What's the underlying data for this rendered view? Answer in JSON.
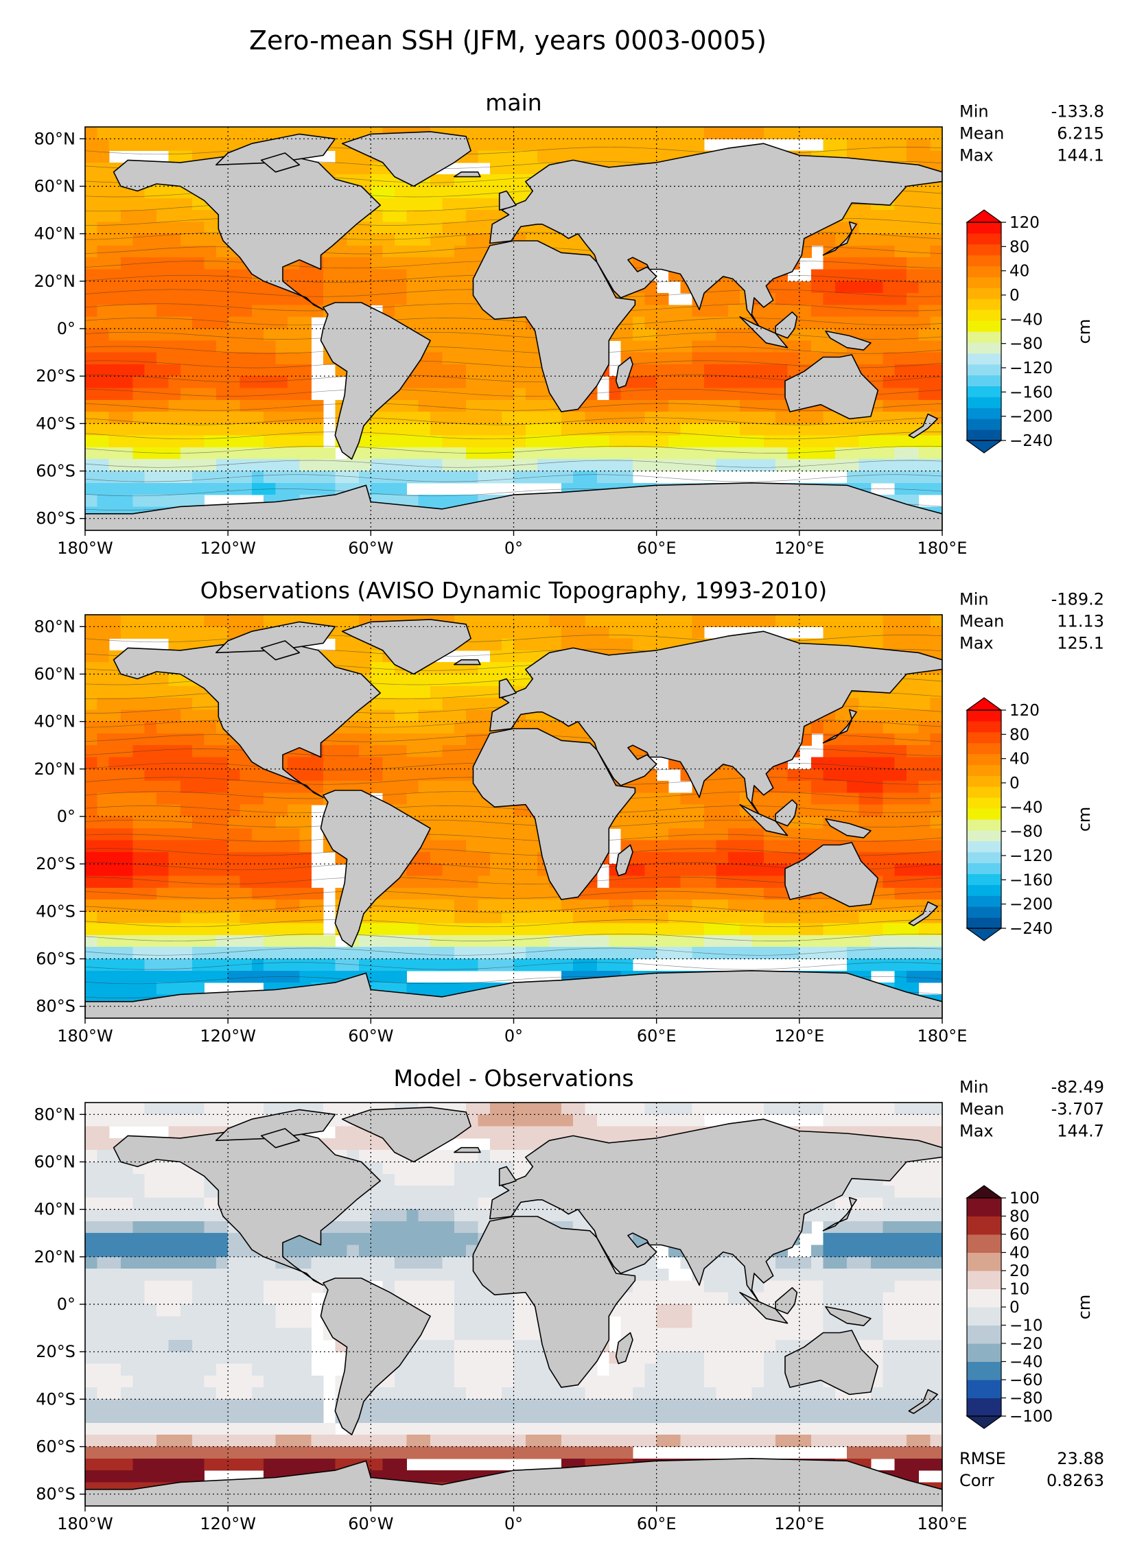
{
  "figure": {
    "suptitle": "Zero-mean SSH (JFM, years 0003-0005)"
  },
  "colors": {
    "land": "#c8c8c8",
    "ssh_scale": [
      "#00569e",
      "#0073bd",
      "#0090d6",
      "#00aee6",
      "#1cc3ef",
      "#5fd0f2",
      "#92dcf2",
      "#b9e8f2",
      "#dcf2c6",
      "#e4f589",
      "#f2f200",
      "#fce000",
      "#ffc800",
      "#ffb000",
      "#ff9a00",
      "#ff8400",
      "#ff6c00",
      "#ff5000",
      "#ff3000",
      "#ff1000"
    ],
    "ssh_under": "#00569e",
    "ssh_over": "#ff0000",
    "diff_scale": [
      "#1b2f7a",
      "#1b58ae",
      "#4286b4",
      "#8eb0c3",
      "#bccbd5",
      "#dde3e7",
      "#f3eeee",
      "#ead4cf",
      "#d9a690",
      "#c16a55",
      "#a82c23",
      "#7b1120"
    ],
    "diff_under": "#18275f",
    "diff_over": "#3a0a14"
  },
  "chart_data": [
    {
      "type": "heatmap",
      "title": "main",
      "xlabel": "",
      "ylabel": "",
      "x_ticks": [
        "180°W",
        "120°W",
        "60°W",
        "0°",
        "60°E",
        "120°E",
        "180°E"
      ],
      "y_ticks": [
        "80°N",
        "60°N",
        "40°N",
        "20°N",
        "0°",
        "20°S",
        "40°S",
        "60°S",
        "80°S"
      ],
      "xlim": [
        -180,
        180
      ],
      "ylim": [
        -85,
        85
      ],
      "stats": [
        {
          "label": "Min",
          "value": "-133.8"
        },
        {
          "label": "Mean",
          "value": "6.215"
        },
        {
          "label": "Max",
          "value": "144.1"
        }
      ],
      "colorbar": {
        "label": "cm",
        "ticks": [
          "120",
          "80",
          "40",
          "0",
          "−40",
          "−80",
          "−120",
          "−160",
          "−200",
          "−240"
        ],
        "range": [
          -240,
          120
        ],
        "scale": "ssh"
      },
      "field": {
        "amp": 1.0,
        "gyre_shift": 0,
        "acc_lat": -55,
        "acc_depth": 175,
        "acc_width": 8,
        "offset": 0
      }
    },
    {
      "type": "heatmap",
      "title": "Observations (AVISO Dynamic Topography, 1993-2010)",
      "xlabel": "",
      "ylabel": "",
      "x_ticks": [
        "180°W",
        "120°W",
        "60°W",
        "0°",
        "60°E",
        "120°E",
        "180°E"
      ],
      "y_ticks": [
        "80°N",
        "60°N",
        "40°N",
        "20°N",
        "0°",
        "20°S",
        "40°S",
        "60°S",
        "80°S"
      ],
      "xlim": [
        -180,
        180
      ],
      "ylim": [
        -85,
        85
      ],
      "stats": [
        {
          "label": "Min",
          "value": "-189.2"
        },
        {
          "label": "Mean",
          "value": "11.13"
        },
        {
          "label": "Max",
          "value": "125.1"
        }
      ],
      "colorbar": {
        "label": "cm",
        "ticks": [
          "120",
          "80",
          "40",
          "0",
          "−40",
          "−80",
          "−120",
          "−160",
          "−200",
          "−240"
        ],
        "range": [
          -240,
          120
        ],
        "scale": "ssh"
      },
      "field": {
        "amp": 1.1,
        "gyre_shift": 10,
        "acc_lat": -55,
        "acc_depth": 215,
        "acc_width": 6,
        "offset": 5
      }
    },
    {
      "type": "heatmap",
      "title": "Model - Observations",
      "xlabel": "",
      "ylabel": "",
      "x_ticks": [
        "180°W",
        "120°W",
        "60°W",
        "0°",
        "60°E",
        "120°E",
        "180°E"
      ],
      "y_ticks": [
        "80°N",
        "60°N",
        "40°N",
        "20°N",
        "0°",
        "20°S",
        "40°S",
        "60°S",
        "80°S"
      ],
      "xlim": [
        -180,
        180
      ],
      "ylim": [
        -85,
        85
      ],
      "stats": [
        {
          "label": "Min",
          "value": "-82.49"
        },
        {
          "label": "Mean",
          "value": "-3.707"
        },
        {
          "label": "Max",
          "value": "144.7"
        }
      ],
      "extra_stats": [
        {
          "label": "RMSE",
          "value": "23.88"
        },
        {
          "label": "Corr",
          "value": "0.8263"
        }
      ],
      "colorbar": {
        "label": "cm",
        "ticks": [
          "100",
          "80",
          "60",
          "40",
          "20",
          "10",
          "0",
          "−10",
          "−20",
          "−40",
          "−60",
          "−80",
          "−100"
        ],
        "levels": [
          -100,
          -80,
          -60,
          -40,
          -20,
          -10,
          0,
          10,
          20,
          40,
          60,
          80,
          100
        ],
        "range": [
          -100,
          100
        ],
        "scale": "diff"
      },
      "field": {
        "diff": true
      }
    }
  ]
}
